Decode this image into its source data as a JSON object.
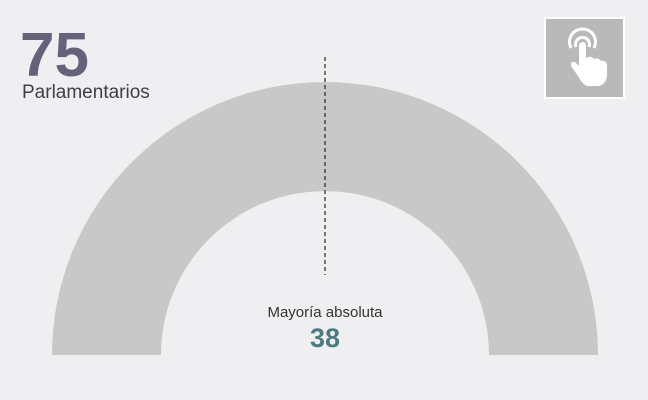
{
  "total": {
    "value": 75,
    "label": "Parlamentarios"
  },
  "majority": {
    "label": "Mayoría absoluta",
    "value": 38
  }
}
